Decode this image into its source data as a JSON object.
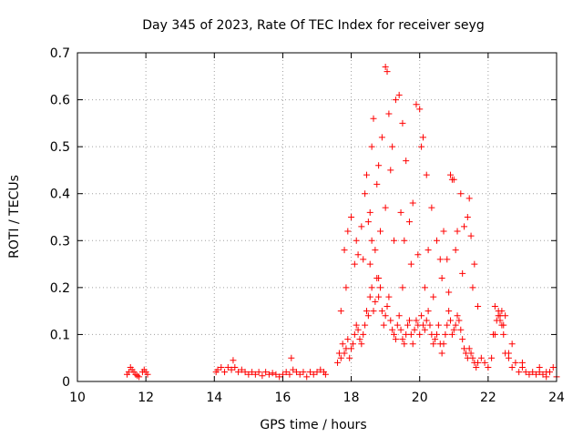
{
  "chart_data": {
    "type": "scatter",
    "title": "Day 345 of 2023, Rate Of TEC Index for receiver seyg",
    "xlabel": "GPS time / hours",
    "ylabel": "ROTI / TECUs",
    "xlim": [
      10,
      24
    ],
    "ylim": [
      0,
      0.7
    ],
    "xticks": [
      10,
      12,
      14,
      16,
      18,
      20,
      22,
      24
    ],
    "yticks": [
      0,
      0.1,
      0.2,
      0.3,
      0.4,
      0.5,
      0.6,
      0.7
    ],
    "ytick_labels": [
      "0",
      "0.1",
      "0.2",
      "0.3",
      "0.4",
      "0.5",
      "0.6",
      "0.7"
    ],
    "grid": true,
    "marker": "+",
    "color": "#ff0000",
    "series": [
      {
        "x": [
          11.45,
          11.5,
          11.55,
          11.6,
          11.65,
          11.7,
          11.75,
          11.8,
          11.9,
          11.95,
          12.0,
          12.05,
          14.05,
          14.1,
          14.2,
          14.3,
          14.4,
          14.5,
          14.55,
          14.6,
          14.7,
          14.8,
          14.9,
          15.0,
          15.1,
          15.2,
          15.3,
          15.4,
          15.5,
          15.6,
          15.7,
          15.8,
          15.9,
          16.0,
          16.1,
          16.2,
          16.25,
          16.3,
          16.4,
          16.5,
          16.6,
          16.7,
          16.8,
          16.9,
          17.0,
          17.1,
          17.2,
          17.25,
          17.6,
          17.65,
          17.7,
          17.75,
          17.8,
          17.85,
          17.9,
          17.95,
          18.0,
          18.05,
          18.1,
          18.15,
          18.2,
          18.25,
          18.3,
          18.35,
          18.4,
          18.45,
          18.5,
          18.55,
          18.6,
          18.65,
          18.7,
          18.75,
          18.8,
          18.85,
          18.9,
          18.95,
          19.0,
          19.05,
          19.1,
          19.15,
          19.2,
          19.25,
          19.3,
          19.35,
          19.4,
          19.45,
          19.5,
          19.55,
          19.6,
          19.65,
          19.7,
          19.75,
          19.8,
          19.85,
          19.9,
          19.95,
          20.0,
          20.05,
          20.1,
          20.15,
          20.2,
          20.25,
          20.3,
          20.35,
          20.4,
          20.45,
          20.5,
          20.55,
          20.6,
          20.65,
          20.7,
          20.75,
          20.8,
          20.85,
          20.9,
          20.95,
          21.0,
          21.05,
          21.1,
          21.15,
          21.2,
          21.25,
          21.3,
          21.35,
          21.4,
          21.45,
          21.5,
          21.55,
          21.6,
          21.65,
          21.7,
          21.8,
          21.9,
          22.0,
          22.1,
          22.2,
          22.25,
          22.3,
          22.35,
          22.4,
          22.45,
          22.5,
          22.6,
          22.7,
          22.8,
          22.9,
          23.0,
          23.1,
          23.2,
          23.3,
          23.4,
          23.5,
          23.6,
          23.7,
          23.8,
          23.9,
          24.0,
          18.5,
          18.55,
          18.6,
          18.7,
          18.8,
          18.9,
          19.0,
          19.05,
          19.1,
          19.3,
          19.4,
          19.5,
          19.6,
          19.9,
          20.0,
          20.05,
          20.1,
          20.2,
          20.9,
          20.95,
          21.0,
          21.3,
          21.4,
          22.3,
          22.35,
          22.4,
          17.8,
          17.9,
          18.0,
          18.1,
          18.2,
          18.3,
          18.4,
          18.45,
          18.6,
          18.65,
          18.75,
          18.85,
          19.15,
          19.2,
          19.45,
          19.55,
          19.7,
          19.8,
          20.25,
          20.35,
          20.5,
          20.6,
          20.7,
          20.8,
          21.1,
          21.2,
          21.45,
          21.5,
          21.6,
          22.2,
          22.5,
          22.7,
          23.5,
          17.7,
          17.85,
          18.15,
          18.35,
          18.55,
          18.8,
          19.0,
          19.25,
          19.5,
          19.75,
          19.95,
          20.15,
          20.4,
          20.65,
          20.85,
          21.05,
          21.25,
          21.55,
          21.7,
          22.15,
          22.45,
          22.6,
          23.0,
          23.7
        ],
        "y": [
          0.015,
          0.02,
          0.03,
          0.025,
          0.02,
          0.015,
          0.012,
          0.01,
          0.02,
          0.025,
          0.02,
          0.015,
          0.02,
          0.025,
          0.03,
          0.02,
          0.03,
          0.025,
          0.045,
          0.03,
          0.02,
          0.025,
          0.02,
          0.015,
          0.02,
          0.015,
          0.02,
          0.012,
          0.02,
          0.015,
          0.018,
          0.015,
          0.01,
          0.015,
          0.02,
          0.015,
          0.05,
          0.025,
          0.02,
          0.015,
          0.02,
          0.01,
          0.02,
          0.015,
          0.02,
          0.025,
          0.02,
          0.015,
          0.04,
          0.06,
          0.05,
          0.08,
          0.06,
          0.07,
          0.09,
          0.05,
          0.07,
          0.08,
          0.1,
          0.12,
          0.11,
          0.09,
          0.08,
          0.1,
          0.12,
          0.15,
          0.14,
          0.18,
          0.2,
          0.15,
          0.17,
          0.22,
          0.18,
          0.2,
          0.15,
          0.12,
          0.14,
          0.16,
          0.18,
          0.13,
          0.11,
          0.1,
          0.09,
          0.12,
          0.14,
          0.11,
          0.09,
          0.08,
          0.1,
          0.12,
          0.13,
          0.1,
          0.08,
          0.11,
          0.13,
          0.12,
          0.1,
          0.14,
          0.12,
          0.11,
          0.13,
          0.15,
          0.12,
          0.1,
          0.08,
          0.09,
          0.1,
          0.12,
          0.08,
          0.06,
          0.08,
          0.1,
          0.12,
          0.15,
          0.13,
          0.1,
          0.11,
          0.12,
          0.14,
          0.13,
          0.11,
          0.09,
          0.07,
          0.06,
          0.05,
          0.07,
          0.06,
          0.05,
          0.04,
          0.03,
          0.04,
          0.05,
          0.04,
          0.03,
          0.05,
          0.1,
          0.13,
          0.15,
          0.14,
          0.12,
          0.1,
          0.06,
          0.05,
          0.03,
          0.04,
          0.02,
          0.03,
          0.02,
          0.015,
          0.02,
          0.015,
          0.02,
          0.015,
          0.01,
          0.02,
          0.03,
          0.01,
          0.34,
          0.36,
          0.3,
          0.28,
          0.46,
          0.52,
          0.67,
          0.66,
          0.57,
          0.6,
          0.61,
          0.55,
          0.47,
          0.59,
          0.58,
          0.5,
          0.52,
          0.44,
          0.44,
          0.43,
          0.43,
          0.33,
          0.35,
          0.14,
          0.13,
          0.15,
          0.28,
          0.32,
          0.35,
          0.25,
          0.27,
          0.33,
          0.4,
          0.44,
          0.5,
          0.56,
          0.42,
          0.32,
          0.45,
          0.5,
          0.36,
          0.3,
          0.34,
          0.38,
          0.28,
          0.37,
          0.3,
          0.26,
          0.32,
          0.26,
          0.32,
          0.4,
          0.39,
          0.31,
          0.25,
          0.16,
          0.14,
          0.08,
          0.03,
          0.15,
          0.2,
          0.3,
          0.26,
          0.25,
          0.22,
          0.37,
          0.3,
          0.2,
          0.25,
          0.27,
          0.2,
          0.18,
          0.22,
          0.19,
          0.28,
          0.23,
          0.2,
          0.16,
          0.1,
          0.12,
          0.06,
          0.04,
          0.02
        ]
      }
    ]
  }
}
